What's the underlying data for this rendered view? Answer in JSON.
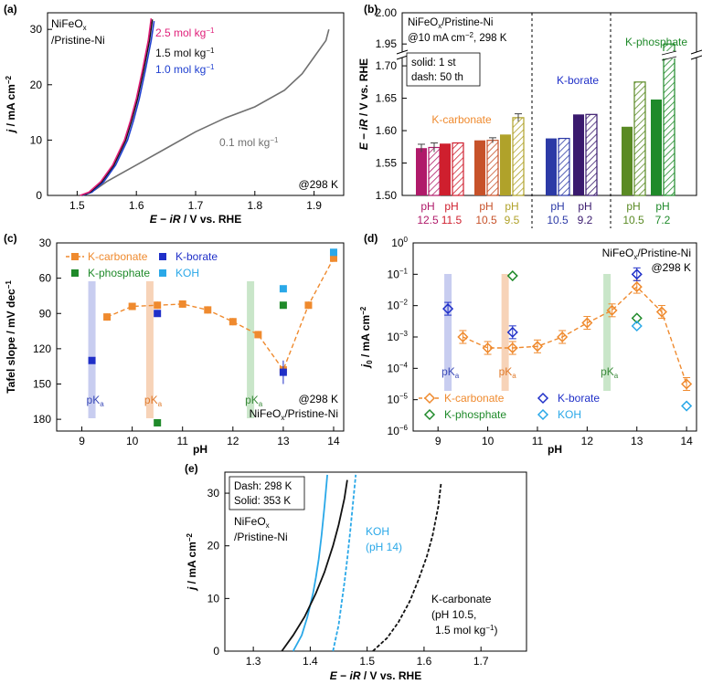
{
  "panels": {
    "a": {
      "letter": "(a)",
      "type": "line",
      "xlabel_parts": [
        "E",
        " − ",
        "iR",
        " / V vs. RHE"
      ],
      "ylabel_parts": [
        "j",
        " / mA cm",
        "−2"
      ],
      "xlim": [
        1.45,
        1.95
      ],
      "ylim": [
        0,
        33
      ],
      "xticks": [
        1.5,
        1.6,
        1.7,
        1.8,
        1.9
      ],
      "yticks": [
        0,
        10,
        20,
        30
      ],
      "sample_lines": [
        "NiFeO",
        "x",
        "/Pristine-Ni"
      ],
      "temp_note": "@298 K",
      "colors": {
        "2.5": "#e0207a",
        "1.5": "#111111",
        "1.0": "#1f3fd0",
        "0.1": "#707070"
      },
      "series": [
        {
          "name": "2.5 mol kg−1",
          "label_main": "2.5 mol kg",
          "label_sup": "−1",
          "color_key": "2.5",
          "x": [
            1.505,
            1.52,
            1.54,
            1.56,
            1.58,
            1.59,
            1.6,
            1.61,
            1.62,
            1.625
          ],
          "y": [
            0,
            0.6,
            2.5,
            5.5,
            10,
            13.5,
            17.5,
            22.5,
            28,
            32
          ]
        },
        {
          "name": "1.5 mol kg−1",
          "label_main": "1.5 mol kg",
          "label_sup": "−1",
          "color_key": "1.5",
          "x": [
            1.507,
            1.522,
            1.542,
            1.562,
            1.582,
            1.592,
            1.602,
            1.612,
            1.622,
            1.627
          ],
          "y": [
            0,
            0.6,
            2.5,
            5.5,
            10,
            13.5,
            17.5,
            22.5,
            28,
            31.8
          ]
        },
        {
          "name": "1.0 mol kg−1",
          "label_main": "1.0 mol kg",
          "label_sup": "−1",
          "color_key": "1.0",
          "x": [
            1.509,
            1.525,
            1.545,
            1.565,
            1.585,
            1.595,
            1.605,
            1.615,
            1.625,
            1.63
          ],
          "y": [
            0,
            0.6,
            2.5,
            5.5,
            10,
            13.5,
            17.5,
            22.5,
            28,
            31.5
          ]
        },
        {
          "name": "0.1 mol kg−1",
          "label_main": "0.1 mol kg",
          "label_sup": "−1",
          "color_key": "0.1",
          "x": [
            1.51,
            1.53,
            1.55,
            1.6,
            1.65,
            1.7,
            1.75,
            1.8,
            1.85,
            1.88,
            1.9,
            1.92,
            1.925
          ],
          "y": [
            0,
            1,
            2.5,
            5.5,
            8.5,
            11.5,
            14,
            16,
            19,
            22,
            25,
            28,
            30
          ]
        }
      ]
    },
    "b": {
      "letter": "(b)",
      "type": "bar",
      "ylabel_parts": [
        "E",
        " − ",
        "iR",
        " / V vs. RHE"
      ],
      "info_lines": [
        "NiFeO",
        "x",
        "/Pristine-Ni",
        "@10 mA cm",
        "−2",
        ", 298 K"
      ],
      "legend_lines": [
        "solid: 1 st",
        "dash: 50 th"
      ],
      "group_labels": {
        "carbonate": "K-carbonate",
        "borate": "K-borate",
        "phosphate": "K-phosphate"
      },
      "yticks_low": [
        1.5,
        1.55,
        1.6,
        1.65,
        1.7
      ],
      "yticks_high": [
        1.95,
        2.0
      ],
      "ylim_low": [
        1.5,
        1.71
      ],
      "ylim_high": [
        1.94,
        2.0
      ],
      "categories": [
        {
          "ph_label": "pH",
          "ph_value": "12.5",
          "color": "#b01a6a",
          "solid": 1.573,
          "dashed": 1.574,
          "group": "carbonate"
        },
        {
          "ph_label": "pH",
          "ph_value": "11.5",
          "color": "#cf1f2e",
          "solid": 1.58,
          "dashed": 1.581,
          "group": "carbonate"
        },
        {
          "ph_label": "pH",
          "ph_value": "10.5",
          "color": "#c7522a",
          "solid": 1.585,
          "dashed": 1.585,
          "group": "carbonate"
        },
        {
          "ph_label": "pH",
          "ph_value": "9.5",
          "color": "#b0a22a",
          "solid": 1.594,
          "dashed": 1.62,
          "group": "carbonate"
        },
        {
          "ph_label": "pH",
          "ph_value": "10.5",
          "color": "#2c3aa6",
          "solid": 1.588,
          "dashed": 1.588,
          "group": "borate"
        },
        {
          "ph_label": "pH",
          "ph_value": "9.2",
          "color": "#3a1a6e",
          "solid": 1.625,
          "dashed": 1.625,
          "group": "borate"
        },
        {
          "ph_label": "pH",
          "ph_value": "10.5",
          "color": "#5a8a24",
          "solid": 1.606,
          "dashed": 1.675,
          "group": "phosphate"
        },
        {
          "ph_label": "pH",
          "ph_value": "7.2",
          "color": "#1f8a2a",
          "solid": 1.648,
          "dashed": 1.95,
          "group": "phosphate"
        }
      ]
    },
    "c": {
      "letter": "(c)",
      "type": "scatter",
      "xlabel": "pH",
      "ylabel_parts": [
        "Tafel slope / mV dec",
        "−1"
      ],
      "xlim": [
        8.5,
        14.2
      ],
      "ylim": [
        190,
        30
      ],
      "xticks": [
        9,
        10,
        11,
        12,
        13,
        14
      ],
      "yticks": [
        30,
        60,
        90,
        120,
        150,
        180
      ],
      "pka_text": [
        "pK",
        "a"
      ],
      "pka_positions": [
        9.2,
        10.35,
        12.35
      ],
      "pka_colors": [
        "#c8cdf0",
        "#f7d3b8",
        "#c9e6c9"
      ],
      "temp_note": "@298 K",
      "sample_lines": [
        "NiFeO",
        "x",
        "/Pristine-Ni"
      ],
      "legend": [
        {
          "label": "K-carbonate",
          "color": "#ef8a2e",
          "style": "line-square"
        },
        {
          "label": "K-borate",
          "color": "#1f2fc8",
          "style": "square"
        },
        {
          "label": "K-phosphate",
          "color": "#1f8a2a",
          "style": "square"
        },
        {
          "label": "KOH",
          "color": "#2aa8e8",
          "style": "square"
        }
      ],
      "series": [
        {
          "name": "K-carbonate",
          "color": "#ef8a2e",
          "x": [
            9.5,
            10,
            10.5,
            11,
            11.5,
            12,
            12.5,
            13,
            13.5,
            14
          ],
          "y": [
            93,
            84,
            83,
            82,
            87,
            97,
            108,
            138,
            83,
            43
          ]
        },
        {
          "name": "K-borate",
          "color": "#1f2fc8",
          "x": [
            9.2,
            10.5,
            13
          ],
          "y": [
            130,
            90,
            140
          ]
        },
        {
          "name": "K-phosphate",
          "color": "#1f8a2a",
          "x": [
            10.5,
            13
          ],
          "y": [
            183,
            83
          ]
        },
        {
          "name": "KOH",
          "color": "#2aa8e8",
          "x": [
            13,
            14
          ],
          "y": [
            69,
            38
          ]
        }
      ]
    },
    "d": {
      "letter": "(d)",
      "type": "scatter",
      "xlabel": "pH",
      "ylabel_parts": [
        "j",
        "0",
        " / mA cm",
        "−2"
      ],
      "xlim": [
        8.5,
        14.2
      ],
      "ylog_range": [
        -6,
        0
      ],
      "xticks": [
        9,
        10,
        11,
        12,
        13,
        14
      ],
      "ytick_exps": [
        "0",
        "−1",
        "−2",
        "−3",
        "−4",
        "−5",
        "−6"
      ],
      "pka_text": [
        "pK",
        "a"
      ],
      "pka_positions": [
        9.2,
        10.35,
        12.4
      ],
      "pka_colors": [
        "#c8cdf0",
        "#f7d3b8",
        "#c9e6c9"
      ],
      "temp_note": "@298 K",
      "sample_lines": [
        "NiFeO",
        "x",
        "/Pristine-Ni"
      ],
      "legend": [
        {
          "label": "K-carbonate",
          "color": "#ef8a2e",
          "style": "line-diamond"
        },
        {
          "label": "K-borate",
          "color": "#1f2fc8",
          "style": "diamond"
        },
        {
          "label": "K-phosphate",
          "color": "#1f8a2a",
          "style": "diamond"
        },
        {
          "label": "KOH",
          "color": "#2aa8e8",
          "style": "diamond"
        }
      ],
      "series": [
        {
          "name": "K-carbonate",
          "color": "#ef8a2e",
          "x": [
            9.5,
            10,
            10.5,
            11,
            11.5,
            12,
            12.5,
            13,
            13.5,
            14
          ],
          "log10_y": [
            -3.0,
            -3.35,
            -3.35,
            -3.3,
            -3.0,
            -2.55,
            -2.15,
            -1.4,
            -2.2,
            -4.5
          ]
        },
        {
          "name": "K-borate",
          "color": "#1f2fc8",
          "x": [
            9.2,
            10.5,
            13
          ],
          "log10_y": [
            -2.1,
            -2.85,
            -1.0
          ]
        },
        {
          "name": "K-phosphate",
          "color": "#1f8a2a",
          "x": [
            10.5,
            13
          ],
          "log10_y": [
            -1.05,
            -2.4
          ]
        },
        {
          "name": "KOH",
          "color": "#2aa8e8",
          "x": [
            13,
            14
          ],
          "log10_y": [
            -2.65,
            -5.2
          ]
        }
      ]
    },
    "e": {
      "letter": "(e)",
      "type": "line",
      "xlabel_parts": [
        "E",
        " − ",
        "iR",
        " / V vs. RHE"
      ],
      "ylabel_parts": [
        "j",
        " / mA cm",
        "−2"
      ],
      "xlim": [
        1.25,
        1.78
      ],
      "ylim": [
        0,
        34
      ],
      "xticks": [
        1.3,
        1.4,
        1.5,
        1.6,
        1.7
      ],
      "yticks": [
        0,
        10,
        20,
        30
      ],
      "legend_lines": [
        "Dash: 298 K",
        "Solid: 353 K"
      ],
      "sample_lines": [
        "NiFeO",
        "x",
        "/Pristine-Ni"
      ],
      "koh_label": [
        "KOH",
        "(pH 14)"
      ],
      "carb_label": [
        "K-carbonate",
        "(pH 10.5,",
        "1.5 mol kg",
        "−1",
        ")"
      ],
      "series": [
        {
          "name": "KOH 353 K",
          "color": "#2aa8e8",
          "dash": false,
          "x": [
            1.37,
            1.385,
            1.395,
            1.405,
            1.41,
            1.415,
            1.42,
            1.425,
            1.43
          ],
          "y": [
            0,
            3,
            6.5,
            11,
            14,
            17.5,
            22,
            27.5,
            33.5
          ]
        },
        {
          "name": "K-carbonate 353 K",
          "color": "#111111",
          "dash": false,
          "x": [
            1.35,
            1.37,
            1.39,
            1.41,
            1.425,
            1.44,
            1.45,
            1.46,
            1.465
          ],
          "y": [
            0,
            3,
            6.5,
            11,
            15,
            20,
            24,
            29,
            32.5
          ]
        },
        {
          "name": "KOH 298 K",
          "color": "#2aa8e8",
          "dash": true,
          "x": [
            1.44,
            1.45,
            1.455,
            1.46,
            1.465,
            1.47,
            1.475,
            1.48
          ],
          "y": [
            0,
            5,
            9,
            13,
            17.5,
            22.5,
            28,
            33.5
          ]
        },
        {
          "name": "K-carbonate 298 K",
          "color": "#111111",
          "dash": true,
          "x": [
            1.51,
            1.535,
            1.555,
            1.575,
            1.59,
            1.605,
            1.615,
            1.625,
            1.63
          ],
          "y": [
            0,
            2.5,
            5.5,
            9.5,
            13.5,
            18,
            22,
            27.5,
            32
          ]
        }
      ]
    }
  }
}
